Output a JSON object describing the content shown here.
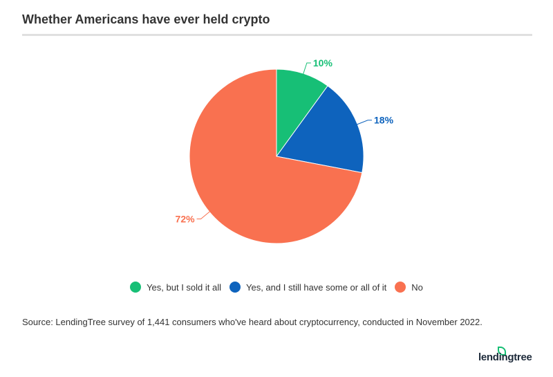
{
  "chart_data": {
    "type": "pie",
    "title": "Whether Americans have ever held crypto",
    "slices": [
      {
        "label": "Yes, but I sold it all",
        "value": 10,
        "display": "10%",
        "color": "#17bf76"
      },
      {
        "label": "Yes, and I still have some or all of it",
        "value": 18,
        "display": "18%",
        "color": "#0e63bd"
      },
      {
        "label": "No",
        "value": 72,
        "display": "72%",
        "color": "#f97150"
      }
    ],
    "legend_position": "bottom"
  },
  "source": "Source: LendingTree survey of 1,441 consumers who've heard about cryptocurrency, conducted in November 2022.",
  "brand": "lendingtree"
}
